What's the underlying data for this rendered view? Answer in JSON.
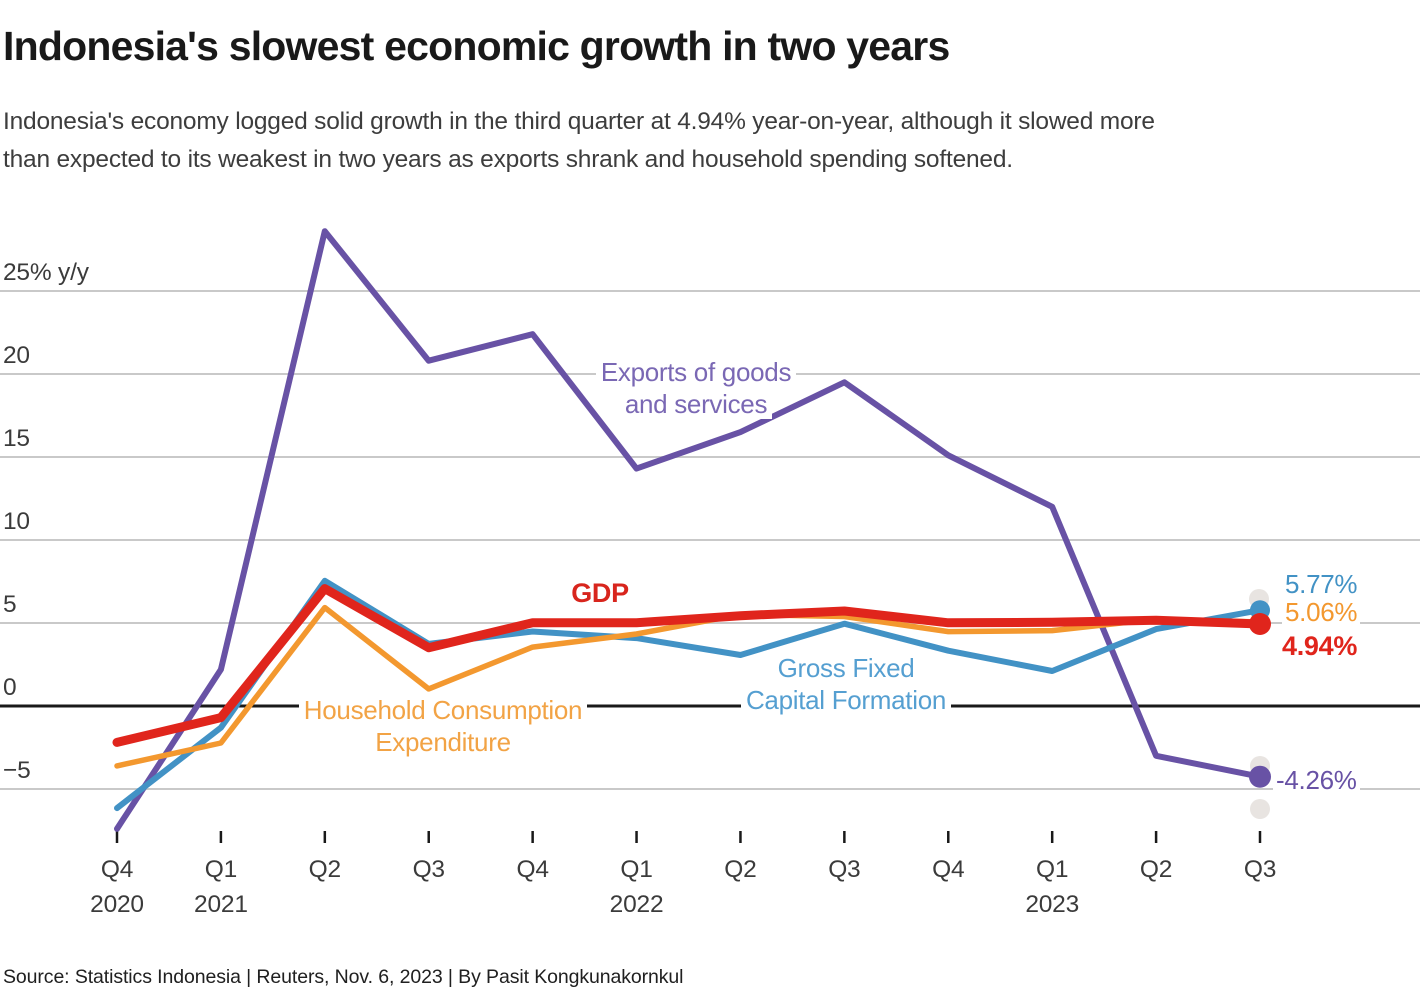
{
  "page": {
    "title": "Indonesia's slowest economic growth in two years",
    "subtitle_lines": [
      "Indonesia's economy logged solid growth in the third quarter at 4.94% year-on-year, although it slowed more",
      "than expected to its weakest in two years as exports shrank and household spending softened."
    ],
    "source": "Source: Statistics Indonesia | Reuters, Nov. 6, 2023 | By Pasit Kongkunakornkul"
  },
  "chart_data": {
    "type": "line",
    "title": "Indonesia's slowest economic growth in two years",
    "unit": "% y/y",
    "xlabel": "",
    "ylabel": "% y/y",
    "grid": true,
    "ylim": [
      -8,
      29
    ],
    "y_axis": {
      "ticks": [
        {
          "value": 25,
          "label": "25% y/y"
        },
        {
          "value": 20,
          "label": "20"
        },
        {
          "value": 15,
          "label": "15"
        },
        {
          "value": 10,
          "label": "10"
        },
        {
          "value": 5,
          "label": "5"
        },
        {
          "value": 0,
          "label": "0"
        },
        {
          "value": -5,
          "label": "−5"
        }
      ],
      "zero_baseline": true
    },
    "x_axis": {
      "categories": [
        {
          "quarter": "Q4",
          "year": "2020"
        },
        {
          "quarter": "Q1",
          "year": "2021"
        },
        {
          "quarter": "Q2"
        },
        {
          "quarter": "Q3"
        },
        {
          "quarter": "Q4"
        },
        {
          "quarter": "Q1",
          "year": "2022"
        },
        {
          "quarter": "Q2"
        },
        {
          "quarter": "Q3"
        },
        {
          "quarter": "Q4"
        },
        {
          "quarter": "Q1",
          "year": "2023"
        },
        {
          "quarter": "Q2"
        },
        {
          "quarter": "Q3"
        }
      ]
    },
    "series": [
      {
        "name": "GDP",
        "color": "#e0251c",
        "label_color": "#d8251d",
        "label_lines": [
          "GDP"
        ],
        "end_label": "4.94%",
        "values": [
          -2.19,
          -0.7,
          7.07,
          3.51,
          5.02,
          5.01,
          5.44,
          5.72,
          5.01,
          5.04,
          5.17,
          4.94
        ]
      },
      {
        "name": "Household Consumption Expenditure",
        "color": "#f3982f",
        "label_color": "#f2a345",
        "label_lines": [
          "Household Consumption",
          "Expenditure"
        ],
        "end_label": "5.06%",
        "values": [
          -3.61,
          -2.23,
          5.93,
          1.03,
          3.55,
          4.34,
          5.51,
          5.39,
          4.48,
          4.54,
          5.23,
          5.06
        ]
      },
      {
        "name": "Gross Fixed Capital Formation",
        "color": "#4292c5",
        "label_color": "#559fd1",
        "label_lines": [
          "Gross Fixed",
          "Capital Formation"
        ],
        "end_label": "5.77%",
        "values": [
          -6.15,
          -1.3,
          7.54,
          3.74,
          4.49,
          4.09,
          3.07,
          4.96,
          3.33,
          2.11,
          4.63,
          5.77
        ]
      },
      {
        "name": "Exports of goods and services",
        "color": "#6852a5",
        "label_color": "#7a68b4",
        "label_lines": [
          "Exports of goods",
          "and services"
        ],
        "end_label": "-4.26%",
        "values": [
          -7.4,
          2.2,
          28.6,
          20.8,
          22.4,
          14.3,
          16.5,
          19.5,
          15.1,
          12.0,
          -3.0,
          -4.26
        ]
      }
    ]
  }
}
